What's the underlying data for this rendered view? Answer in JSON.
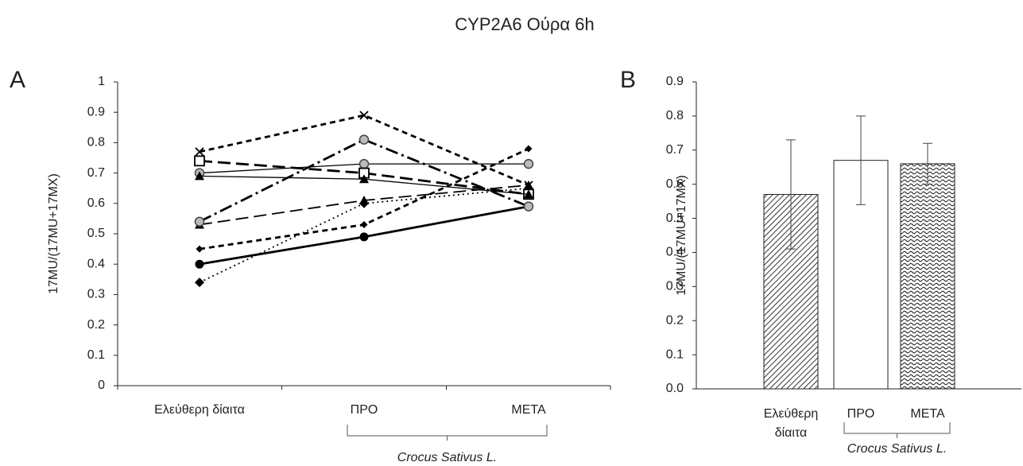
{
  "title": "CYP2A6 Ούρα 6h",
  "chart_data": [
    {
      "type": "line",
      "panel_label": "A",
      "y_label": "17MU/(17MU+17MX)",
      "categories": [
        "Ελεύθερη δίαιτα",
        "ΠΡΟ",
        "ΜΕΤΑ"
      ],
      "annotation": "Crocus Sativus L.",
      "ylim": [
        0,
        1
      ],
      "yticks": [
        0,
        0.1,
        0.2,
        0.3,
        0.4,
        0.5,
        0.6,
        0.7,
        0.8,
        0.9,
        1
      ],
      "series": [
        {
          "values": [
            0.4,
            0.49,
            0.59
          ],
          "color": "#000000",
          "dash": "solid",
          "weight": "thick",
          "marker": "circle"
        },
        {
          "values": [
            0.34,
            0.6,
            0.65
          ],
          "color": "#000000",
          "dash": "dotted",
          "weight": "normal",
          "marker": "diamond"
        },
        {
          "values": [
            0.45,
            0.53,
            0.78
          ],
          "color": "#000000",
          "dash": "dashed",
          "weight": "thick",
          "marker": "small-diamond"
        },
        {
          "values": [
            0.53,
            0.61,
            0.66
          ],
          "color": "#000000",
          "dash": "long-dash",
          "weight": "normal",
          "marker": "triangle"
        },
        {
          "values": [
            0.54,
            0.81,
            0.59
          ],
          "color": "#000000",
          "dash": "dash-dot",
          "weight": "thick",
          "marker": "grey-circle"
        },
        {
          "values": [
            0.7,
            0.73,
            0.73
          ],
          "color": "#000000",
          "dash": "solid",
          "weight": "thin",
          "marker": "grey-circle"
        },
        {
          "values": [
            0.74,
            0.7,
            0.63
          ],
          "color": "#000000",
          "dash": "long-dash",
          "weight": "thick",
          "marker": "square"
        },
        {
          "values": [
            0.77,
            0.89,
            0.66
          ],
          "color": "#000000",
          "dash": "dashed",
          "weight": "thick",
          "marker": "cross"
        },
        {
          "values": [
            0.69,
            0.68,
            0.63
          ],
          "color": "#000000",
          "dash": "solid",
          "weight": "thin",
          "marker": "triangle"
        }
      ]
    },
    {
      "type": "bar",
      "panel_label": "B",
      "y_label": "17MU/(17MU+17MX)",
      "categories": [
        "Ελεύθερη δίαιτα",
        "ΠΡΟ",
        "ΜΕΤΑ"
      ],
      "annotation": "Crocus Sativus L.",
      "values": [
        0.57,
        0.67,
        0.66
      ],
      "errors": [
        0.16,
        0.13,
        0.06
      ],
      "patterns": [
        "diagonal",
        "plain",
        "wave"
      ],
      "ylim": [
        0,
        0.9
      ],
      "yticks": [
        {
          "value": 0,
          "label": "0.0"
        },
        0.1,
        0.2,
        0.3,
        0.4,
        0.5,
        0.6,
        0.7,
        0.8,
        0.9
      ]
    }
  ]
}
